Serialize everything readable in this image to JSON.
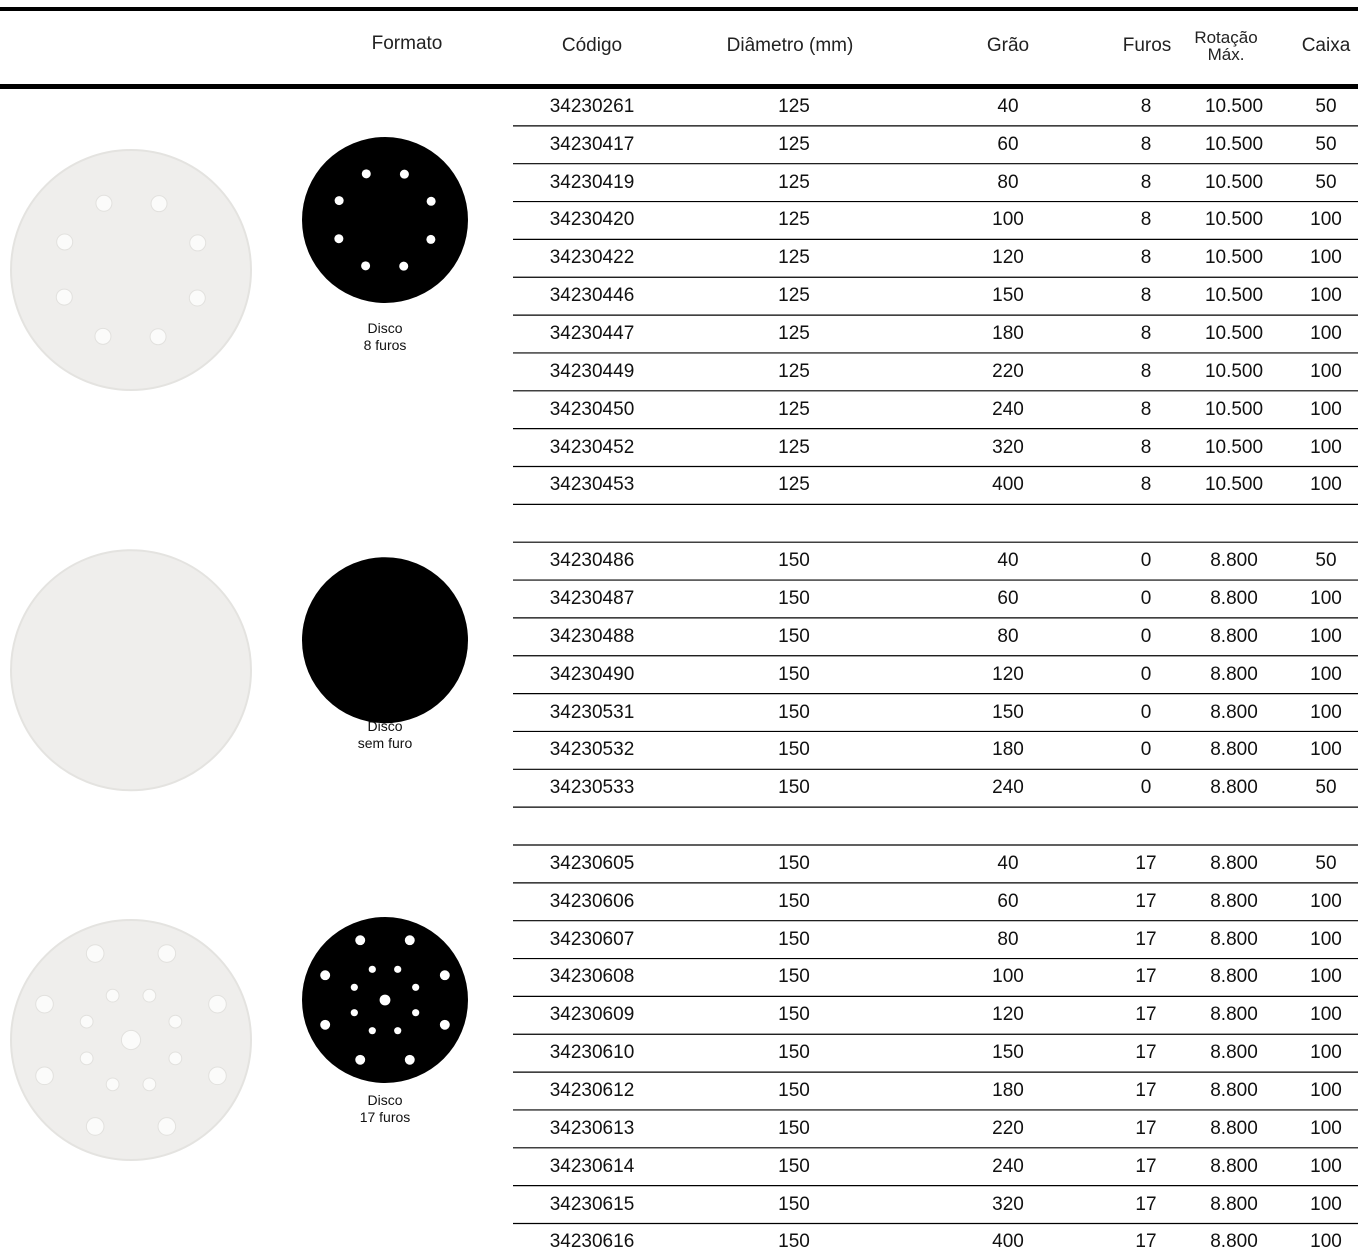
{
  "table": {
    "columns": [
      "Formato",
      "Código",
      "Diâmetro (mm)",
      "Grão",
      "Furos",
      "Rotação Máx.",
      "Caixa"
    ],
    "groups": [
      {
        "caption": [
          "Disco",
          "8 furos"
        ],
        "rows": [
          [
            34230261,
            125,
            40,
            8,
            "10.500",
            50
          ],
          [
            34230417,
            125,
            60,
            8,
            "10.500",
            50
          ],
          [
            34230419,
            125,
            80,
            8,
            "10.500",
            50
          ],
          [
            34230420,
            125,
            100,
            8,
            "10.500",
            100
          ],
          [
            34230422,
            125,
            120,
            8,
            "10.500",
            100
          ],
          [
            34230446,
            125,
            150,
            8,
            "10.500",
            100
          ],
          [
            34230447,
            125,
            180,
            8,
            "10.500",
            100
          ],
          [
            34230449,
            125,
            220,
            8,
            "10.500",
            100
          ],
          [
            34230450,
            125,
            240,
            8,
            "10.500",
            100
          ],
          [
            34230452,
            125,
            320,
            8,
            "10.500",
            100
          ],
          [
            34230453,
            125,
            400,
            8,
            "10.500",
            100
          ]
        ]
      },
      {
        "caption": [
          "Disco",
          "sem furo"
        ],
        "rows": [
          [
            34230486,
            150,
            40,
            0,
            "8.800",
            50
          ],
          [
            34230487,
            150,
            60,
            0,
            "8.800",
            100
          ],
          [
            34230488,
            150,
            80,
            0,
            "8.800",
            100
          ],
          [
            34230490,
            150,
            120,
            0,
            "8.800",
            100
          ],
          [
            34230531,
            150,
            150,
            0,
            "8.800",
            100
          ],
          [
            34230532,
            150,
            180,
            0,
            "8.800",
            100
          ],
          [
            34230533,
            150,
            240,
            0,
            "8.800",
            50
          ]
        ]
      },
      {
        "caption": [
          "Disco",
          "17 furos"
        ],
        "rows": [
          [
            34230605,
            150,
            40,
            17,
            "8.800",
            50
          ],
          [
            34230606,
            150,
            60,
            17,
            "8.800",
            100
          ],
          [
            34230607,
            150,
            80,
            17,
            "8.800",
            100
          ],
          [
            34230608,
            150,
            100,
            17,
            "8.800",
            100
          ],
          [
            34230609,
            150,
            120,
            17,
            "8.800",
            100
          ],
          [
            34230610,
            150,
            150,
            17,
            "8.800",
            100
          ],
          [
            34230612,
            150,
            180,
            17,
            "8.800",
            100
          ],
          [
            34230613,
            150,
            220,
            17,
            "8.800",
            100
          ],
          [
            34230614,
            150,
            240,
            17,
            "8.800",
            100
          ],
          [
            34230615,
            150,
            320,
            17,
            "8.800",
            100
          ],
          [
            34230616,
            150,
            400,
            17,
            "8.800",
            100
          ]
        ]
      }
    ]
  }
}
